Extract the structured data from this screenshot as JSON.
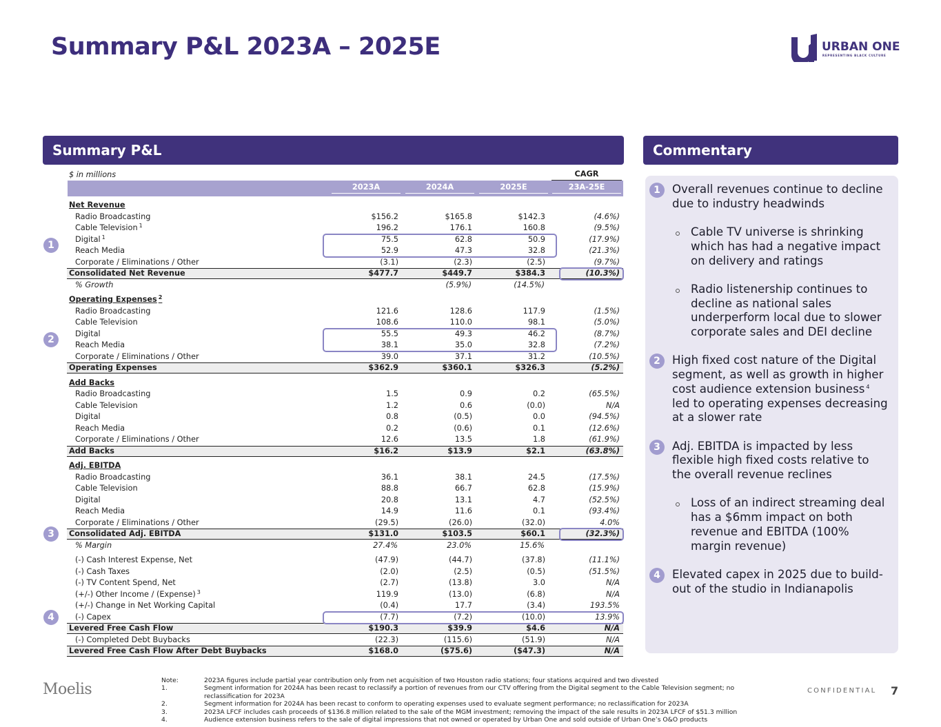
{
  "header": {
    "title": "Summary P&L 2023A – 2025E",
    "logo": "URBAN ONE",
    "logo_tagline": "REPRESENTING BLACK CULTURE"
  },
  "table": {
    "title": "Summary P&L",
    "units": "$ in millions",
    "cagr_label": "CAGR",
    "columns": [
      "2023A",
      "2024A",
      "2025E",
      "23A-25E"
    ],
    "rows": [
      {
        "kind": "section",
        "label": "Net Revenue"
      },
      {
        "kind": "item",
        "label": "Radio Broadcasting",
        "values": [
          "$156.2",
          "$165.8",
          "$142.3",
          "(4.6%)"
        ]
      },
      {
        "kind": "item",
        "label": "Cable Television",
        "note": "1",
        "values": [
          "196.2",
          "176.1",
          "160.8",
          "(9.5%)"
        ]
      },
      {
        "kind": "item",
        "label": "Digital",
        "note": "1",
        "values": [
          "75.5",
          "62.8",
          "50.9",
          "(17.9%)"
        ]
      },
      {
        "kind": "item",
        "label": "Reach Media",
        "values": [
          "52.9",
          "47.3",
          "32.8",
          "(21.3%)"
        ]
      },
      {
        "kind": "item",
        "label": "Corporate / Eliminations / Other",
        "values": [
          "(3.1)",
          "(2.3)",
          "(2.5)",
          "(9.7%)"
        ]
      },
      {
        "kind": "total",
        "label": "Consolidated Net Revenue",
        "values": [
          "$477.7",
          "$449.7",
          "$384.3",
          "(10.3%)"
        ]
      },
      {
        "kind": "growth",
        "label": "% Growth",
        "values": [
          null,
          "(5.9%)",
          "(14.5%)",
          null
        ]
      },
      {
        "kind": "section",
        "label": "Operating Expenses",
        "note": "2"
      },
      {
        "kind": "item",
        "label": "Radio Broadcasting",
        "values": [
          "121.6",
          "128.6",
          "117.9",
          "(1.5%)"
        ]
      },
      {
        "kind": "item",
        "label": "Cable Television",
        "values": [
          "108.6",
          "110.0",
          "98.1",
          "(5.0%)"
        ]
      },
      {
        "kind": "item",
        "label": "Digital",
        "values": [
          "55.5",
          "49.3",
          "46.2",
          "(8.7%)"
        ]
      },
      {
        "kind": "item",
        "label": "Reach Media",
        "values": [
          "38.1",
          "35.0",
          "32.8",
          "(7.2%)"
        ]
      },
      {
        "kind": "item",
        "label": "Corporate / Eliminations / Other",
        "values": [
          "39.0",
          "37.1",
          "31.2",
          "(10.5%)"
        ]
      },
      {
        "kind": "total",
        "label": "Operating Expenses",
        "values": [
          "$362.9",
          "$360.1",
          "$326.3",
          "(5.2%)"
        ]
      },
      {
        "kind": "section",
        "label": "Add Backs"
      },
      {
        "kind": "item",
        "label": "Radio Broadcasting",
        "values": [
          "1.5",
          "0.9",
          "0.2",
          "(65.5%)"
        ]
      },
      {
        "kind": "item",
        "label": "Cable Television",
        "values": [
          "1.2",
          "0.6",
          "(0.0)",
          "N/A"
        ]
      },
      {
        "kind": "item",
        "label": "Digital",
        "values": [
          "0.8",
          "(0.5)",
          "0.0",
          "(94.5%)"
        ]
      },
      {
        "kind": "item",
        "label": "Reach Media",
        "values": [
          "0.2",
          "(0.6)",
          "0.1",
          "(12.6%)"
        ]
      },
      {
        "kind": "item",
        "label": "Corporate / Eliminations / Other",
        "values": [
          "12.6",
          "13.5",
          "1.8",
          "(61.9%)"
        ]
      },
      {
        "kind": "total",
        "label": "Add Backs",
        "values": [
          "$16.2",
          "$13.9",
          "$2.1",
          "(63.8%)"
        ]
      },
      {
        "kind": "section",
        "label": "Adj. EBITDA"
      },
      {
        "kind": "item",
        "label": "Radio Broadcasting",
        "values": [
          "36.1",
          "38.1",
          "24.5",
          "(17.5%)"
        ]
      },
      {
        "kind": "item",
        "label": "Cable Television",
        "values": [
          "88.8",
          "66.7",
          "62.8",
          "(15.9%)"
        ]
      },
      {
        "kind": "item",
        "label": "Digital",
        "values": [
          "20.8",
          "13.1",
          "4.7",
          "(52.5%)"
        ]
      },
      {
        "kind": "item",
        "label": "Reach Media",
        "values": [
          "14.9",
          "11.6",
          "0.1",
          "(93.4%)"
        ]
      },
      {
        "kind": "item",
        "label": "Corporate / Eliminations / Other",
        "values": [
          "(29.5)",
          "(26.0)",
          "(32.0)",
          "4.0%"
        ]
      },
      {
        "kind": "total",
        "label": "Consolidated Adj. EBITDA",
        "values": [
          "$131.0",
          "$103.5",
          "$60.1",
          "(32.3%)"
        ]
      },
      {
        "kind": "growth",
        "label": "% Margin",
        "values": [
          "27.4%",
          "23.0%",
          "15.6%",
          null
        ]
      },
      {
        "kind": "item",
        "label": "(-) Cash Interest Expense, Net",
        "values": [
          "(47.9)",
          "(44.7)",
          "(37.8)",
          "(11.1%)"
        ]
      },
      {
        "kind": "item",
        "label": "(-) Cash Taxes",
        "values": [
          "(2.0)",
          "(2.5)",
          "(0.5)",
          "(51.5%)"
        ]
      },
      {
        "kind": "item",
        "label": "(-) TV Content Spend, Net",
        "values": [
          "(2.7)",
          "(13.8)",
          "3.0",
          "N/A"
        ]
      },
      {
        "kind": "item",
        "label": "(+/-) Other Income / (Expense)",
        "note": "3",
        "values": [
          "119.9",
          "(13.0)",
          "(6.8)",
          "N/A"
        ]
      },
      {
        "kind": "item",
        "label": "(+/-) Change in Net Working Capital",
        "values": [
          "(0.4)",
          "17.7",
          "(3.4)",
          "193.5%"
        ]
      },
      {
        "kind": "item",
        "label": "(-) Capex",
        "values": [
          "(7.7)",
          "(7.2)",
          "(10.0)",
          "13.9%"
        ]
      },
      {
        "kind": "total",
        "label": "Levered Free Cash Flow",
        "values": [
          "$190.3",
          "$39.9",
          "$4.6",
          "N/A"
        ]
      },
      {
        "kind": "item",
        "label": "(-) Completed Debt Buybacks",
        "values": [
          "(22.3)",
          "(115.6)",
          "(51.9)",
          "N/A"
        ]
      },
      {
        "kind": "total",
        "label": "Levered Free Cash Flow After Debt Buybacks",
        "values": [
          "$168.0",
          "($75.6)",
          "($47.3)",
          "N/A"
        ]
      }
    ]
  },
  "commentary": {
    "title": "Commentary",
    "items": [
      {
        "number": "1",
        "text": "Overall revenues continue to decline due to industry headwinds",
        "bullets": [
          "Cable TV universe is shrinking which has had a negative impact on delivery and ratings",
          "Radio listenership continues to decline as national sales underperform local due to slower corporate sales and DEI decline"
        ]
      },
      {
        "number": "2",
        "text": "High fixed cost nature of the Digital segment, as well as growth in higher cost audience extension business",
        "note": "4",
        "text_after": " led to operating expenses decreasing at a slower rate",
        "bullets": []
      },
      {
        "number": "3",
        "text": "Adj. EBITDA is impacted by less flexible high fixed costs relative to the overall revenue reclines",
        "bullets": [
          "Loss of an indirect streaming deal has a $6mm impact on both revenue and EBITDA (100% margin revenue)"
        ]
      },
      {
        "number": "4",
        "text": "Elevated capex in 2025 due to build-out of the studio in Indianapolis",
        "bullets": []
      }
    ]
  },
  "footer": {
    "brand": "Moelis",
    "confidential": "CONFIDENTIAL",
    "page": "7",
    "notes": [
      {
        "label": "Note:",
        "text": "2023A figures include partial year contribution only from net acquisition of two Houston radio stations; four stations acquired and two divested"
      },
      {
        "label": "1.",
        "text": "Segment information for 2024A has been recast to reclassify a portion of revenues from our CTV offering from the Digital segment to the Cable Television segment; no reclassification for 2023A"
      },
      {
        "label": "2.",
        "text": "Segment information for 2024A has been recast to conform to operating expenses used to evaluate segment performance; no reclassification for 2023A"
      },
      {
        "label": "3.",
        "text": "2023A LFCF includes cash proceeds of $136.8 million related to the sale of the MGM investment; removing the impact of the sale results in 2023A LFCF of $51.3 million"
      },
      {
        "label": "4.",
        "text": "Audience extension business refers to the sale of digital impressions that not owned or operated by Urban One and sold outside of Urban One’s O&O products"
      }
    ]
  }
}
